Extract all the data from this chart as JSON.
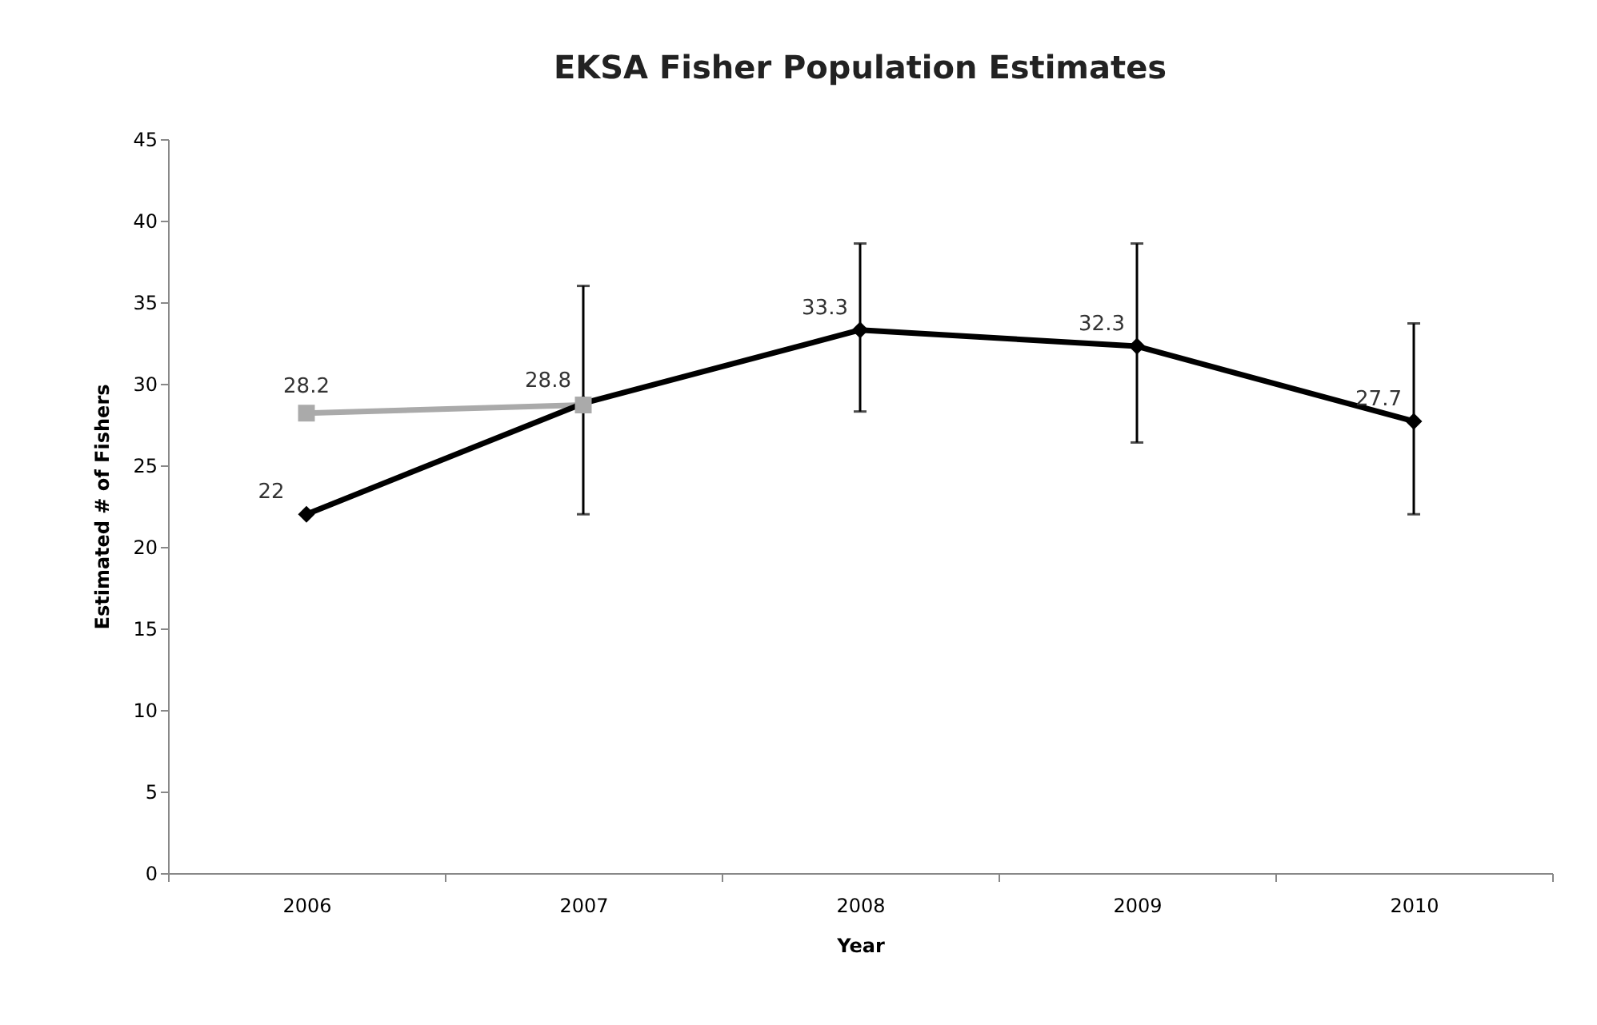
{
  "chart_data": {
    "type": "line",
    "title": "EKSA Fisher Population Estimates",
    "xlabel": "Year",
    "ylabel": "Estimated # of Fishers",
    "categories": [
      "2006",
      "2007",
      "2008",
      "2009",
      "2010"
    ],
    "series": [
      {
        "color": "#000000",
        "marker": "diamond",
        "values": [
          22,
          28.8,
          33.3,
          32.3,
          27.7
        ],
        "errors": [
          null,
          [
            22,
            36
          ],
          [
            28.3,
            38.6
          ],
          [
            26.4,
            38.6
          ],
          [
            22,
            33.7
          ]
        ],
        "value_labels": [
          "22",
          "28.8",
          "33.3",
          "32.3",
          "27.7"
        ]
      },
      {
        "color": "#aaaaaa",
        "marker": "square",
        "values": [
          28.2,
          28.7,
          null,
          null,
          null
        ],
        "value_labels": [
          "28.2",
          null,
          null,
          null,
          null
        ]
      }
    ],
    "ylim": [
      0,
      45
    ],
    "yticks": [
      0,
      5,
      10,
      15,
      20,
      25,
      30,
      35,
      40,
      45
    ],
    "grid": false,
    "legend": false,
    "line_style": "solid"
  }
}
